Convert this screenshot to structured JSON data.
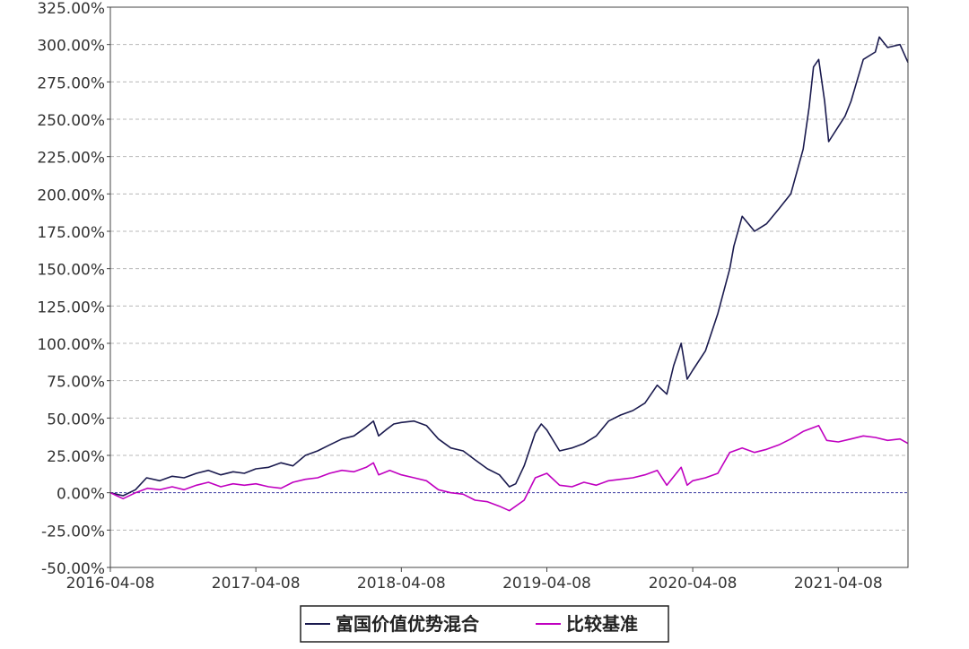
{
  "chart_data": {
    "type": "line",
    "title": "",
    "xlabel": "",
    "ylabel": "",
    "x_range": [
      "2016-04-08",
      "2021-09-30"
    ],
    "ylim": [
      -50,
      325
    ],
    "y_ticks": [
      "325.00%",
      "300.00%",
      "275.00%",
      "250.00%",
      "225.00%",
      "200.00%",
      "175.00%",
      "150.00%",
      "125.00%",
      "100.00%",
      "75.00%",
      "50.00%",
      "25.00%",
      "0.00%",
      "-25.00%",
      "-50.00%"
    ],
    "y_tick_values": [
      325,
      300,
      275,
      250,
      225,
      200,
      175,
      150,
      125,
      100,
      75,
      50,
      25,
      0,
      -25,
      -50
    ],
    "x_ticks": [
      "2016-04-08",
      "2017-04-08",
      "2018-04-08",
      "2019-04-08",
      "2020-04-08",
      "2021-04-08"
    ],
    "grid": true,
    "legend_position": "bottom-center",
    "series": [
      {
        "name": "富国价值优势混合",
        "color": "#1a1a4e",
        "points": [
          [
            "2016-04-08",
            0
          ],
          [
            "2016-05-10",
            -2
          ],
          [
            "2016-06-10",
            2
          ],
          [
            "2016-07-08",
            10
          ],
          [
            "2016-08-10",
            8
          ],
          [
            "2016-09-10",
            11
          ],
          [
            "2016-10-10",
            10
          ],
          [
            "2016-11-10",
            13
          ],
          [
            "2016-12-10",
            15
          ],
          [
            "2017-01-10",
            12
          ],
          [
            "2017-02-10",
            14
          ],
          [
            "2017-03-10",
            13
          ],
          [
            "2017-04-08",
            16
          ],
          [
            "2017-05-10",
            17
          ],
          [
            "2017-06-10",
            20
          ],
          [
            "2017-07-10",
            18
          ],
          [
            "2017-08-10",
            25
          ],
          [
            "2017-09-10",
            28
          ],
          [
            "2017-10-10",
            32
          ],
          [
            "2017-11-10",
            36
          ],
          [
            "2017-12-10",
            38
          ],
          [
            "2018-01-10",
            44
          ],
          [
            "2018-01-28",
            48
          ],
          [
            "2018-02-10",
            38
          ],
          [
            "2018-02-28",
            42
          ],
          [
            "2018-03-20",
            46
          ],
          [
            "2018-04-08",
            47
          ],
          [
            "2018-05-10",
            48
          ],
          [
            "2018-06-10",
            45
          ],
          [
            "2018-07-10",
            36
          ],
          [
            "2018-08-10",
            30
          ],
          [
            "2018-09-10",
            28
          ],
          [
            "2018-10-10",
            22
          ],
          [
            "2018-11-10",
            16
          ],
          [
            "2018-12-10",
            12
          ],
          [
            "2019-01-04",
            4
          ],
          [
            "2019-01-20",
            6
          ],
          [
            "2019-02-10",
            18
          ],
          [
            "2019-03-10",
            40
          ],
          [
            "2019-03-25",
            46
          ],
          [
            "2019-04-08",
            42
          ],
          [
            "2019-05-10",
            28
          ],
          [
            "2019-06-10",
            30
          ],
          [
            "2019-07-10",
            33
          ],
          [
            "2019-08-10",
            38
          ],
          [
            "2019-09-10",
            48
          ],
          [
            "2019-10-10",
            52
          ],
          [
            "2019-11-10",
            55
          ],
          [
            "2019-12-10",
            60
          ],
          [
            "2020-01-10",
            72
          ],
          [
            "2020-02-03",
            66
          ],
          [
            "2020-02-20",
            85
          ],
          [
            "2020-03-10",
            100
          ],
          [
            "2020-03-25",
            76
          ],
          [
            "2020-04-08",
            82
          ],
          [
            "2020-05-10",
            95
          ],
          [
            "2020-06-10",
            120
          ],
          [
            "2020-07-10",
            150
          ],
          [
            "2020-07-20",
            165
          ],
          [
            "2020-08-10",
            185
          ],
          [
            "2020-09-10",
            175
          ],
          [
            "2020-10-10",
            180
          ],
          [
            "2020-11-10",
            190
          ],
          [
            "2020-12-10",
            200
          ],
          [
            "2021-01-10",
            230
          ],
          [
            "2021-01-25",
            258
          ],
          [
            "2021-02-05",
            285
          ],
          [
            "2021-02-18",
            290
          ],
          [
            "2021-03-05",
            262
          ],
          [
            "2021-03-15",
            235
          ],
          [
            "2021-04-08",
            245
          ],
          [
            "2021-04-25",
            252
          ],
          [
            "2021-05-10",
            262
          ],
          [
            "2021-06-10",
            290
          ],
          [
            "2021-07-10",
            295
          ],
          [
            "2021-07-20",
            305
          ],
          [
            "2021-08-10",
            298
          ],
          [
            "2021-09-10",
            300
          ],
          [
            "2021-09-30",
            288
          ]
        ]
      },
      {
        "name": "比较基准",
        "color": "#c000c0",
        "points": [
          [
            "2016-04-08",
            0
          ],
          [
            "2016-05-10",
            -4
          ],
          [
            "2016-06-10",
            0
          ],
          [
            "2016-07-10",
            3
          ],
          [
            "2016-08-10",
            2
          ],
          [
            "2016-09-10",
            4
          ],
          [
            "2016-10-10",
            2
          ],
          [
            "2016-11-10",
            5
          ],
          [
            "2016-12-10",
            7
          ],
          [
            "2017-01-10",
            4
          ],
          [
            "2017-02-10",
            6
          ],
          [
            "2017-03-10",
            5
          ],
          [
            "2017-04-08",
            6
          ],
          [
            "2017-05-10",
            4
          ],
          [
            "2017-06-10",
            3
          ],
          [
            "2017-07-10",
            7
          ],
          [
            "2017-08-10",
            9
          ],
          [
            "2017-09-10",
            10
          ],
          [
            "2017-10-10",
            13
          ],
          [
            "2017-11-10",
            15
          ],
          [
            "2017-12-10",
            14
          ],
          [
            "2018-01-10",
            17
          ],
          [
            "2018-01-28",
            20
          ],
          [
            "2018-02-10",
            12
          ],
          [
            "2018-03-10",
            15
          ],
          [
            "2018-04-08",
            12
          ],
          [
            "2018-05-10",
            10
          ],
          [
            "2018-06-10",
            8
          ],
          [
            "2018-07-10",
            2
          ],
          [
            "2018-08-10",
            0
          ],
          [
            "2018-09-10",
            -1
          ],
          [
            "2018-10-10",
            -5
          ],
          [
            "2018-11-10",
            -6
          ],
          [
            "2018-12-10",
            -9
          ],
          [
            "2019-01-04",
            -12
          ],
          [
            "2019-02-10",
            -5
          ],
          [
            "2019-03-10",
            10
          ],
          [
            "2019-04-08",
            13
          ],
          [
            "2019-05-10",
            5
          ],
          [
            "2019-06-10",
            4
          ],
          [
            "2019-07-10",
            7
          ],
          [
            "2019-08-10",
            5
          ],
          [
            "2019-09-10",
            8
          ],
          [
            "2019-10-10",
            9
          ],
          [
            "2019-11-10",
            10
          ],
          [
            "2019-12-10",
            12
          ],
          [
            "2020-01-10",
            15
          ],
          [
            "2020-02-03",
            5
          ],
          [
            "2020-03-10",
            17
          ],
          [
            "2020-03-25",
            5
          ],
          [
            "2020-04-08",
            8
          ],
          [
            "2020-05-10",
            10
          ],
          [
            "2020-06-10",
            13
          ],
          [
            "2020-07-10",
            27
          ],
          [
            "2020-08-10",
            30
          ],
          [
            "2020-09-10",
            27
          ],
          [
            "2020-10-10",
            29
          ],
          [
            "2020-11-10",
            32
          ],
          [
            "2020-12-10",
            36
          ],
          [
            "2021-01-10",
            41
          ],
          [
            "2021-02-18",
            45
          ],
          [
            "2021-03-10",
            35
          ],
          [
            "2021-04-08",
            34
          ],
          [
            "2021-05-10",
            36
          ],
          [
            "2021-06-10",
            38
          ],
          [
            "2021-07-10",
            37
          ],
          [
            "2021-08-10",
            35
          ],
          [
            "2021-09-10",
            36
          ],
          [
            "2021-09-30",
            33
          ]
        ]
      }
    ]
  }
}
